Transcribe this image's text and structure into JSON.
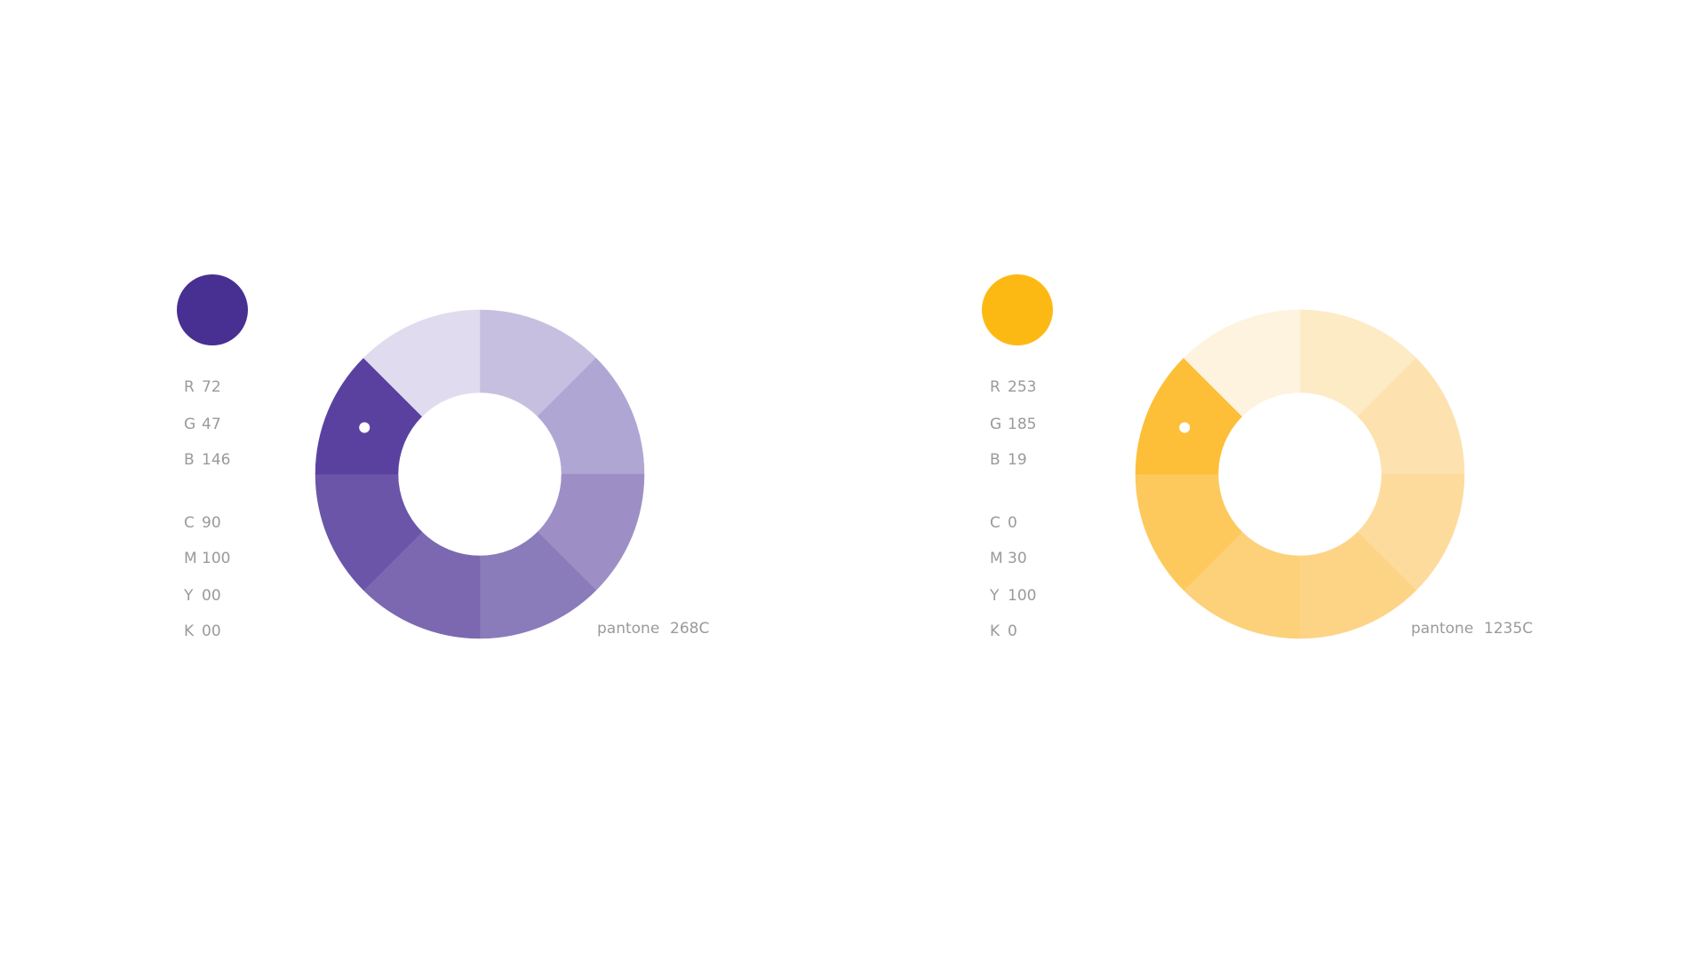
{
  "palettes": [
    {
      "color": "#482f92",
      "rgb": [
        {
          "label": "R",
          "value": "72"
        },
        {
          "label": "G",
          "value": "47"
        },
        {
          "label": "B",
          "value": "146"
        }
      ],
      "cmyk": [
        {
          "label": "C",
          "value": "90"
        },
        {
          "label": "M",
          "value": "100"
        },
        {
          "label": "Y",
          "value": "00"
        },
        {
          "label": "K",
          "value": "00"
        }
      ],
      "wheel_colors": [
        "#c7bfdf",
        "#b0a6d3",
        "#9d8fc5",
        "#8a7bbb",
        "#7b68b0",
        "#6a55a8",
        "#5a41a0",
        "#e0dbee"
      ],
      "pantone": {
        "label": "pantone",
        "code": "268C"
      }
    },
    {
      "color": "#fdb913",
      "rgb": [
        {
          "label": "R",
          "value": "253"
        },
        {
          "label": "G",
          "value": "185"
        },
        {
          "label": "B",
          "value": "19"
        }
      ],
      "cmyk": [
        {
          "label": "C",
          "value": "0"
        },
        {
          "label": "M",
          "value": "30"
        },
        {
          "label": "Y",
          "value": "100"
        },
        {
          "label": "K",
          "value": "0"
        }
      ],
      "wheel_colors": [
        "#fdebc6",
        "#fde2b0",
        "#fddb9c",
        "#fdd486",
        "#fdd07a",
        "#fdc95c",
        "#fdbf37",
        "#fef3df"
      ],
      "pantone": {
        "label": "pantone",
        "code": "1235C"
      }
    }
  ]
}
